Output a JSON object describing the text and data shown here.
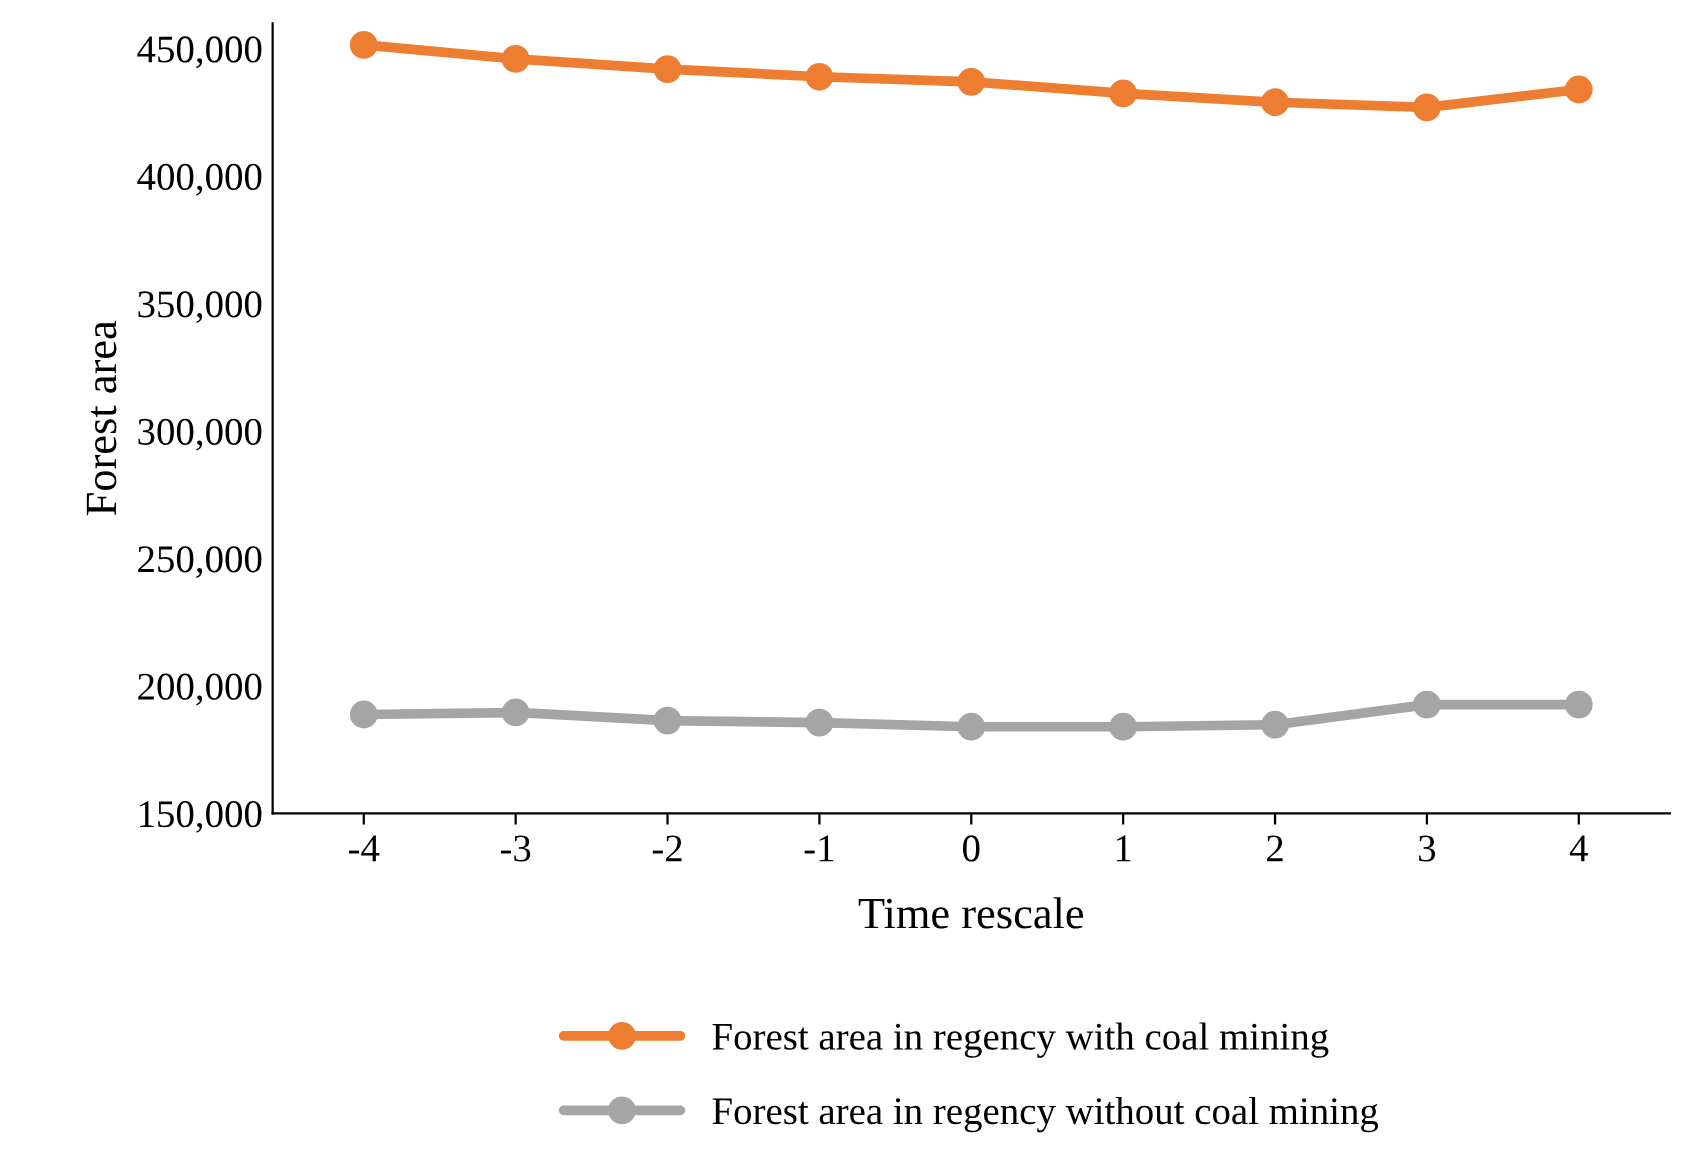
{
  "chart_data": {
    "type": "line",
    "xlabel": "Time rescale",
    "ylabel": "Forest area",
    "categories": [
      "-4",
      "-3",
      "-2",
      "-1",
      "0",
      "1",
      "2",
      "3",
      "4"
    ],
    "series": [
      {
        "name": "Forest area in regency with coal mining",
        "color": "#ed7d31",
        "values": [
          451500,
          446000,
          442000,
          439000,
          437000,
          432500,
          429000,
          427000,
          434000
        ]
      },
      {
        "name": "Forest area in regency without coal mining",
        "color": "#a5a5a5",
        "values": [
          188800,
          189600,
          186400,
          185600,
          184000,
          184000,
          184800,
          192700,
          192700
        ]
      }
    ],
    "ylim": [
      150000,
      460000
    ],
    "yticks": [
      {
        "value": 150000,
        "label": "150,000"
      },
      {
        "value": 200000,
        "label": "200,000"
      },
      {
        "value": 250000,
        "label": "250,000"
      },
      {
        "value": 300000,
        "label": "300,000"
      },
      {
        "value": 350000,
        "label": "350,000"
      },
      {
        "value": 400000,
        "label": "400,000"
      },
      {
        "value": 450000,
        "label": "450,000"
      }
    ],
    "grid": false,
    "legend": "bottom",
    "marker": "circle",
    "line_style": "solid"
  }
}
